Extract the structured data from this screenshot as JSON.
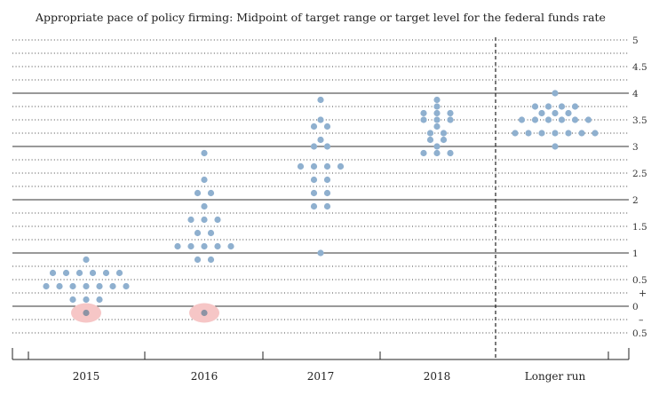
{
  "chart_data": {
    "type": "scatter",
    "title": "Appropriate pace of policy firming: Midpoint of target range or target level for the federal funds rate",
    "categories": [
      "2015",
      "2016",
      "2017",
      "2018",
      "Longer run"
    ],
    "y_tick_labels": [
      {
        "value": 5,
        "label": "5"
      },
      {
        "value": 4.5,
        "label": "4.5"
      },
      {
        "value": 4,
        "label": "4"
      },
      {
        "value": 3.5,
        "label": "3.5"
      },
      {
        "value": 3,
        "label": "3"
      },
      {
        "value": 2.5,
        "label": "2.5"
      },
      {
        "value": 2,
        "label": "2"
      },
      {
        "value": 1.5,
        "label": "1.5"
      },
      {
        "value": 1,
        "label": "1"
      },
      {
        "value": 0.5,
        "label": "0.5"
      },
      {
        "value": 0,
        "label": "0"
      },
      {
        "value": -0.5,
        "label": "0.5"
      }
    ],
    "sign_labels": [
      {
        "value": 0.25,
        "label": "+"
      },
      {
        "value": -0.25,
        "label": "–"
      }
    ],
    "ylim": [
      -0.75,
      5.05
    ],
    "solid_gridlines": [
      0,
      1,
      2,
      3,
      4
    ],
    "dotted_gridlines": [
      5,
      4.75,
      4.5,
      4.25,
      3.75,
      3.5,
      3.25,
      2.75,
      2.5,
      2.25,
      1.75,
      1.5,
      1.25,
      0.75,
      0.5,
      0.25,
      -0.25,
      -0.5
    ],
    "separator_between": [
      "2018",
      "Longer run"
    ],
    "dot_color": "#8fb0cf",
    "highlight_color": "#f6c6c6",
    "highlighted_dot_color": "#8c93a4",
    "columns": [
      {
        "category": "2015",
        "rows": [
          {
            "value": 0.875,
            "count": 1
          },
          {
            "value": 0.625,
            "count": 6
          },
          {
            "value": 0.375,
            "count": 7
          },
          {
            "value": 0.125,
            "count": 3
          },
          {
            "value": -0.125,
            "count": 1,
            "highlight": true
          }
        ]
      },
      {
        "category": "2016",
        "rows": [
          {
            "value": 2.875,
            "count": 1
          },
          {
            "value": 2.375,
            "count": 1
          },
          {
            "value": 2.125,
            "count": 2
          },
          {
            "value": 1.875,
            "count": 1
          },
          {
            "value": 1.625,
            "count": 3
          },
          {
            "value": 1.375,
            "count": 2
          },
          {
            "value": 1.125,
            "count": 5
          },
          {
            "value": 0.875,
            "count": 2
          },
          {
            "value": -0.125,
            "count": 1,
            "highlight": true
          }
        ]
      },
      {
        "category": "2017",
        "rows": [
          {
            "value": 3.875,
            "count": 1
          },
          {
            "value": 3.5,
            "count": 1
          },
          {
            "value": 3.375,
            "count": 2
          },
          {
            "value": 3.125,
            "count": 1
          },
          {
            "value": 3.0,
            "count": 2
          },
          {
            "value": 2.625,
            "count": 4
          },
          {
            "value": 2.375,
            "count": 2
          },
          {
            "value": 2.125,
            "count": 2
          },
          {
            "value": 1.875,
            "count": 2
          },
          {
            "value": 1.0,
            "count": 1
          }
        ]
      },
      {
        "category": "2018",
        "rows": [
          {
            "value": 3.875,
            "count": 1
          },
          {
            "value": 3.75,
            "count": 1
          },
          {
            "value": 3.625,
            "count": 3
          },
          {
            "value": 3.5,
            "count": 3
          },
          {
            "value": 3.375,
            "count": 1
          },
          {
            "value": 3.25,
            "count": 2
          },
          {
            "value": 3.125,
            "count": 2
          },
          {
            "value": 3.0,
            "count": 1
          },
          {
            "value": 2.875,
            "count": 3
          }
        ]
      },
      {
        "category": "Longer run",
        "rows": [
          {
            "value": 4.0,
            "count": 1
          },
          {
            "value": 3.75,
            "count": 4
          },
          {
            "value": 3.625,
            "count": 3
          },
          {
            "value": 3.5,
            "count": 6
          },
          {
            "value": 3.25,
            "count": 7
          },
          {
            "value": 3.0,
            "count": 1
          }
        ]
      }
    ]
  }
}
